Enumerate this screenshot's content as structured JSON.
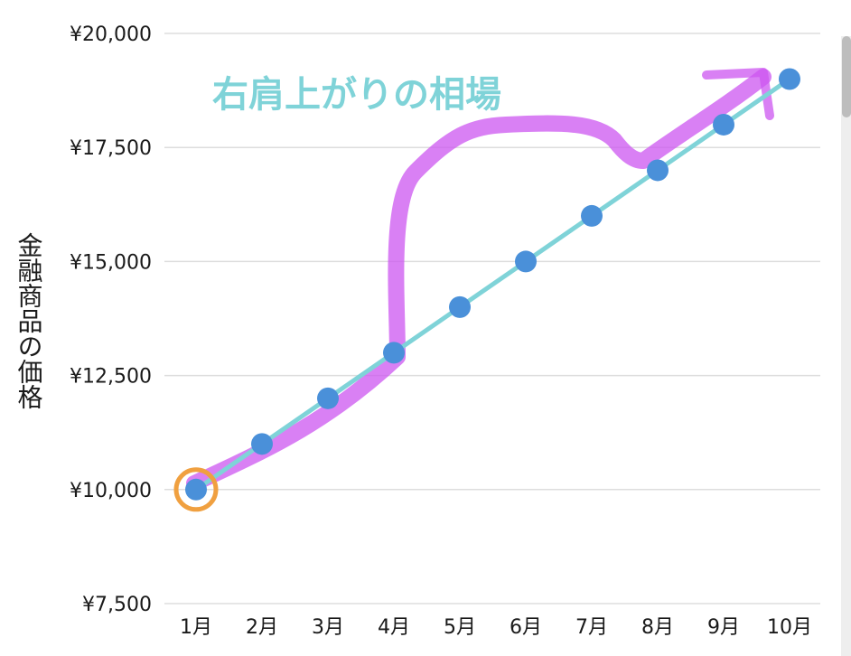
{
  "chart_data": {
    "type": "line",
    "title": "",
    "xlabel": "",
    "ylabel": "金融商品の価格",
    "categories": [
      "1月",
      "2月",
      "3月",
      "4月",
      "5月",
      "6月",
      "7月",
      "8月",
      "9月",
      "10月"
    ],
    "series": [
      {
        "values": [
          10000,
          11000,
          12000,
          13000,
          14000,
          15000,
          16000,
          17000,
          18000,
          19000
        ]
      }
    ],
    "ylim": [
      7500,
      20000
    ],
    "yticks": [
      7500,
      10000,
      12500,
      15000,
      17500,
      20000
    ],
    "ytick_labels": [
      "¥7,500",
      "¥10,000",
      "¥12,500",
      "¥15,000",
      "¥17,500",
      "¥20,000"
    ],
    "grid": true,
    "annotations": [
      {
        "text": "右肩上がりの相場"
      }
    ],
    "colors": {
      "line": "#7fd3d8",
      "marker": "#4a90d9",
      "highlight_circle": "#f0a040",
      "handdrawn": "#cc55f0",
      "annotation_text": "#7fd3d8",
      "grid": "#dddddd"
    }
  }
}
